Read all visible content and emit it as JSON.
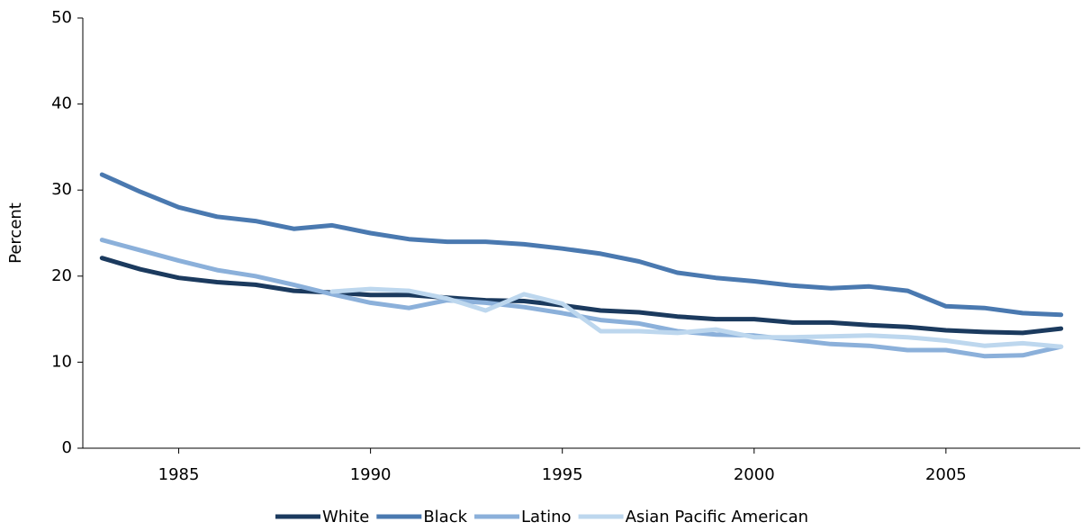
{
  "chart_data": {
    "type": "line",
    "y_label": "Percent",
    "x": [
      1983,
      1984,
      1985,
      1986,
      1987,
      1988,
      1989,
      1990,
      1991,
      1992,
      1993,
      1994,
      1995,
      1996,
      1997,
      1998,
      1999,
      2000,
      2001,
      2002,
      2003,
      2004,
      2005,
      2006,
      2007,
      2008
    ],
    "xlim": [
      1982.5,
      2008.5
    ],
    "xticks": [
      1985,
      1990,
      1995,
      2000,
      2005
    ],
    "ylim": [
      0,
      50
    ],
    "yticks": [
      0,
      10,
      20,
      30,
      40,
      50
    ],
    "series": [
      {
        "name": "White",
        "color": "#1b3a5e",
        "values": [
          22.1,
          20.8,
          19.8,
          19.3,
          19.0,
          18.3,
          18.1,
          17.8,
          17.8,
          17.5,
          17.2,
          17.1,
          16.6,
          16.0,
          15.8,
          15.3,
          15.0,
          15.0,
          14.6,
          14.6,
          14.3,
          14.1,
          13.7,
          13.5,
          13.4,
          13.9
        ]
      },
      {
        "name": "Black",
        "color": "#4a79b0",
        "values": [
          31.8,
          29.8,
          28.0,
          26.9,
          26.4,
          25.5,
          25.9,
          25.0,
          24.3,
          24.0,
          24.0,
          23.7,
          23.2,
          22.6,
          21.7,
          20.4,
          19.8,
          19.4,
          18.9,
          18.6,
          18.8,
          18.3,
          16.5,
          16.3,
          15.7,
          15.5
        ]
      },
      {
        "name": "Latino",
        "color": "#8bb0da",
        "values": [
          24.2,
          23.0,
          21.8,
          20.7,
          20.0,
          19.0,
          17.9,
          16.9,
          16.3,
          17.2,
          16.9,
          16.4,
          15.7,
          14.9,
          14.5,
          13.6,
          13.2,
          13.1,
          12.6,
          12.1,
          11.9,
          11.4,
          11.4,
          10.7,
          10.8,
          11.8
        ]
      },
      {
        "name": "Asian Pacific American",
        "color": "#bdd7ee",
        "values": [
          null,
          null,
          null,
          null,
          null,
          null,
          18.2,
          18.5,
          18.3,
          17.4,
          16.0,
          17.9,
          16.8,
          13.6,
          13.6,
          13.4,
          13.8,
          12.9,
          12.9,
          13.0,
          13.1,
          12.9,
          12.5,
          11.9,
          12.2,
          11.8
        ]
      }
    ]
  }
}
